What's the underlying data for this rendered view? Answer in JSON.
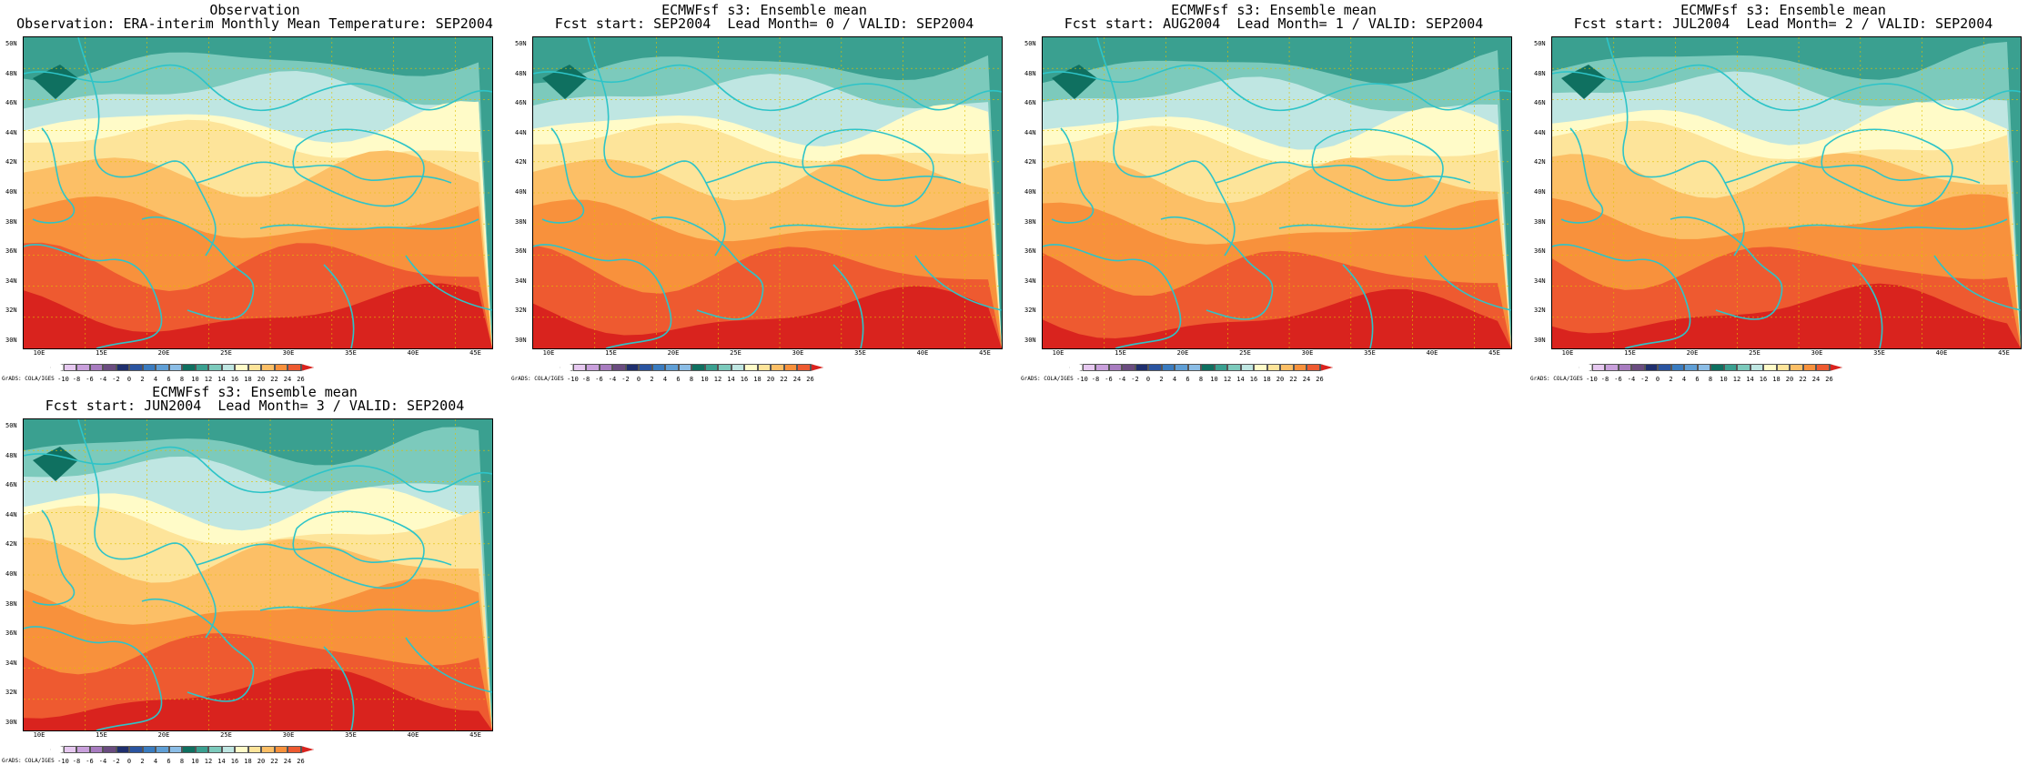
{
  "panels": [
    {
      "title1": "Observation",
      "title2": "Observation: ERA-interim Monthly Mean Temperature: SEP2004"
    },
    {
      "title1": "ECMWFsf s3: Ensemble mean",
      "title2": "Fcst start: SEP2004  Lead Month= 0 / VALID: SEP2004"
    },
    {
      "title1": "ECMWFsf s3: Ensemble mean",
      "title2": "Fcst start: AUG2004  Lead Month= 1 / VALID: SEP2004"
    },
    {
      "title1": "ECMWFsf s3: Ensemble mean",
      "title2": "Fcst start: JUL2004  Lead Month= 2 / VALID: SEP2004"
    },
    {
      "title1": "ECMWFsf s3: Ensemble mean",
      "title2": "Fcst start: JUN2004  Lead Month= 3 / VALID: SEP2004"
    }
  ],
  "lat_labels": [
    "50N",
    "48N",
    "46N",
    "44N",
    "42N",
    "40N",
    "38N",
    "36N",
    "34N",
    "32N",
    "30N"
  ],
  "lon_labels": [
    "10E",
    "15E",
    "20E",
    "25E",
    "30E",
    "35E",
    "40E",
    "45E"
  ],
  "colorbar": {
    "labels": [
      "-10",
      "-8",
      "-6",
      "-4",
      "-2",
      "0",
      "2",
      "4",
      "6",
      "8",
      "10",
      "12",
      "14",
      "16",
      "18",
      "20",
      "22",
      "24",
      "26"
    ],
    "colors": [
      "#ffffff",
      "#e6c8f0",
      "#c9a0dc",
      "#a87cc0",
      "#6a4c80",
      "#1f2f6e",
      "#2a54a0",
      "#3a7cc0",
      "#5f9fd6",
      "#8bbde6",
      "#0f7060",
      "#3aa090",
      "#7ccabc",
      "#bfe6e2",
      "#fffbc8",
      "#fde49a",
      "#fcbf66",
      "#f8913c",
      "#ee5a30",
      "#d9231e"
    ],
    "credit": "GrADS: COLA/IGES"
  },
  "colors": {
    "coast": "#2ec4c8",
    "grid": "#e0c000"
  }
}
